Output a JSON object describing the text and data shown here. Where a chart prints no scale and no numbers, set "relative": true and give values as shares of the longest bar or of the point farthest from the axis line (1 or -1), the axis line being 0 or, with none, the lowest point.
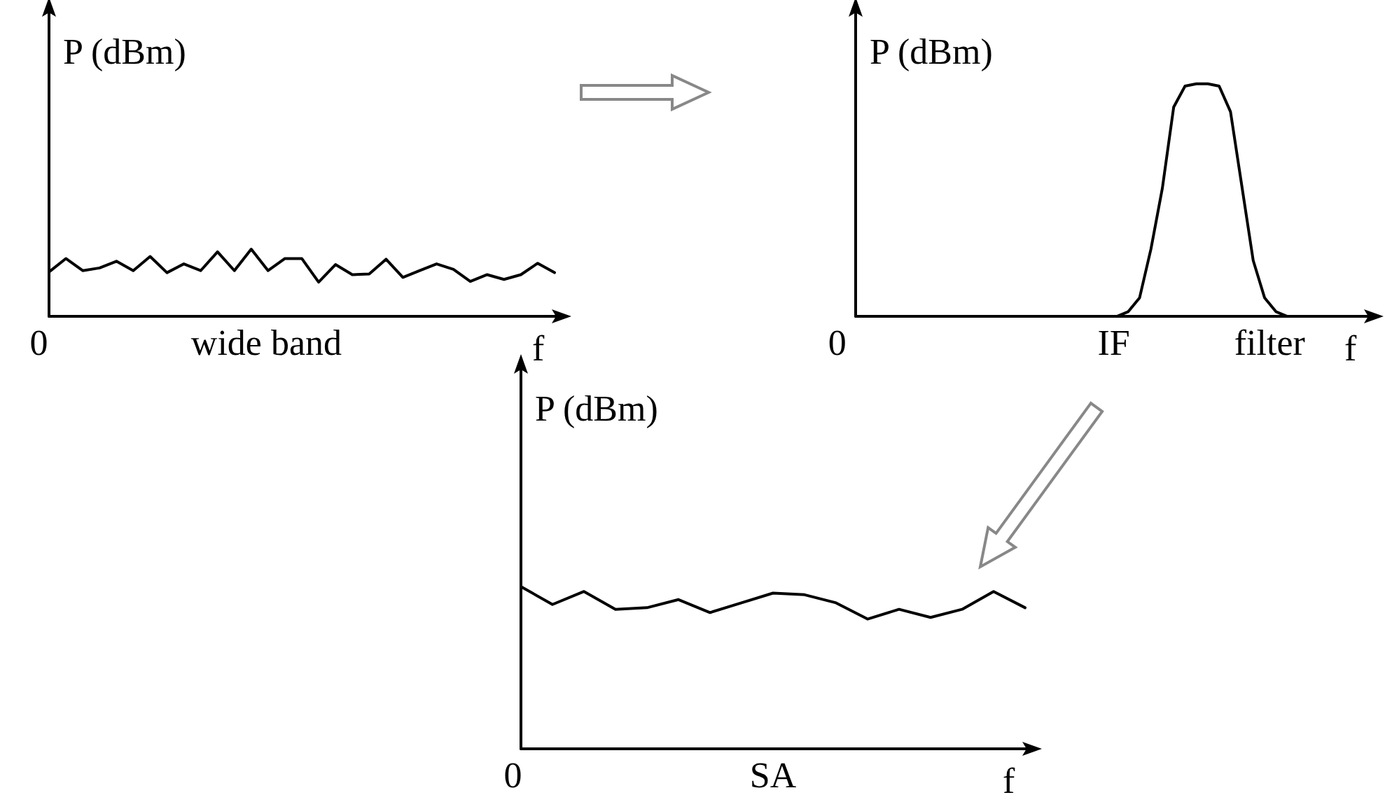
{
  "chart_data": [
    {
      "type": "line",
      "ylabel": "P (dBm)",
      "xlabel": "f",
      "relative": true,
      "marker": "none",
      "annotations": [
        "0",
        "wide band"
      ],
      "categories": [
        null,
        null,
        null,
        null,
        null,
        null,
        null,
        null,
        null,
        null,
        null,
        null,
        null,
        null,
        null,
        null,
        null,
        null,
        null,
        null,
        null,
        null,
        null,
        null,
        null,
        null,
        null,
        null,
        null,
        null,
        null
      ],
      "series": [
        {
          "color": "#000000",
          "values": [
            0.66,
            0.86,
            0.68,
            0.72,
            0.82,
            0.68,
            0.89,
            0.65,
            0.78,
            0.68,
            0.96,
            0.68,
            1,
            0.68,
            0.86,
            0.86,
            0.51,
            0.77,
            0.62,
            0.63,
            0.85,
            0.58,
            0.68,
            0.78,
            0.7,
            0.52,
            0.62,
            0.55,
            0.62,
            0.79,
            0.65
          ]
        }
      ]
    },
    {
      "type": "line",
      "ylabel": "P (dBm)",
      "xlabel": "f",
      "relative": true,
      "marker": "none",
      "annotations": [
        "0",
        "IF",
        "filter"
      ],
      "categories": [
        null,
        null,
        null,
        null,
        null,
        null,
        null,
        null,
        null,
        null,
        null,
        null,
        null,
        null,
        null,
        null,
        null,
        null,
        null,
        null,
        null,
        null,
        null,
        null,
        null,
        null,
        null,
        null,
        null,
        null,
        null,
        null,
        null,
        null,
        null,
        null,
        null,
        null,
        null,
        null,
        null,
        null,
        null,
        null,
        null,
        null
      ],
      "series": [
        {
          "color": "#000000",
          "values": [
            null,
            null,
            null,
            null,
            null,
            null,
            null,
            null,
            null,
            null,
            null,
            null,
            null,
            null,
            null,
            null,
            null,
            null,
            null,
            null,
            null,
            null,
            null,
            0,
            0.02,
            0.08,
            0.29,
            0.55,
            0.9,
            0.99,
            1,
            1,
            0.99,
            0.88,
            0.56,
            0.24,
            0.08,
            0.02,
            0,
            null,
            null,
            null,
            null,
            null,
            null,
            null
          ]
        }
      ]
    },
    {
      "type": "line",
      "ylabel": "P (dBm)",
      "xlabel": "f",
      "relative": true,
      "marker": "none",
      "annotations": [
        "0",
        "SA"
      ],
      "categories": [
        null,
        null,
        null,
        null,
        null,
        null,
        null,
        null,
        null,
        null,
        null,
        null,
        null,
        null,
        null,
        null,
        null
      ],
      "series": [
        {
          "color": "#000000",
          "values": [
            1,
            0.89,
            0.97,
            0.86,
            0.87,
            0.92,
            0.84,
            0.9,
            0.96,
            0.95,
            0.9,
            0.8,
            0.86,
            0.81,
            0.86,
            0.97,
            0.87
          ]
        }
      ]
    }
  ]
}
